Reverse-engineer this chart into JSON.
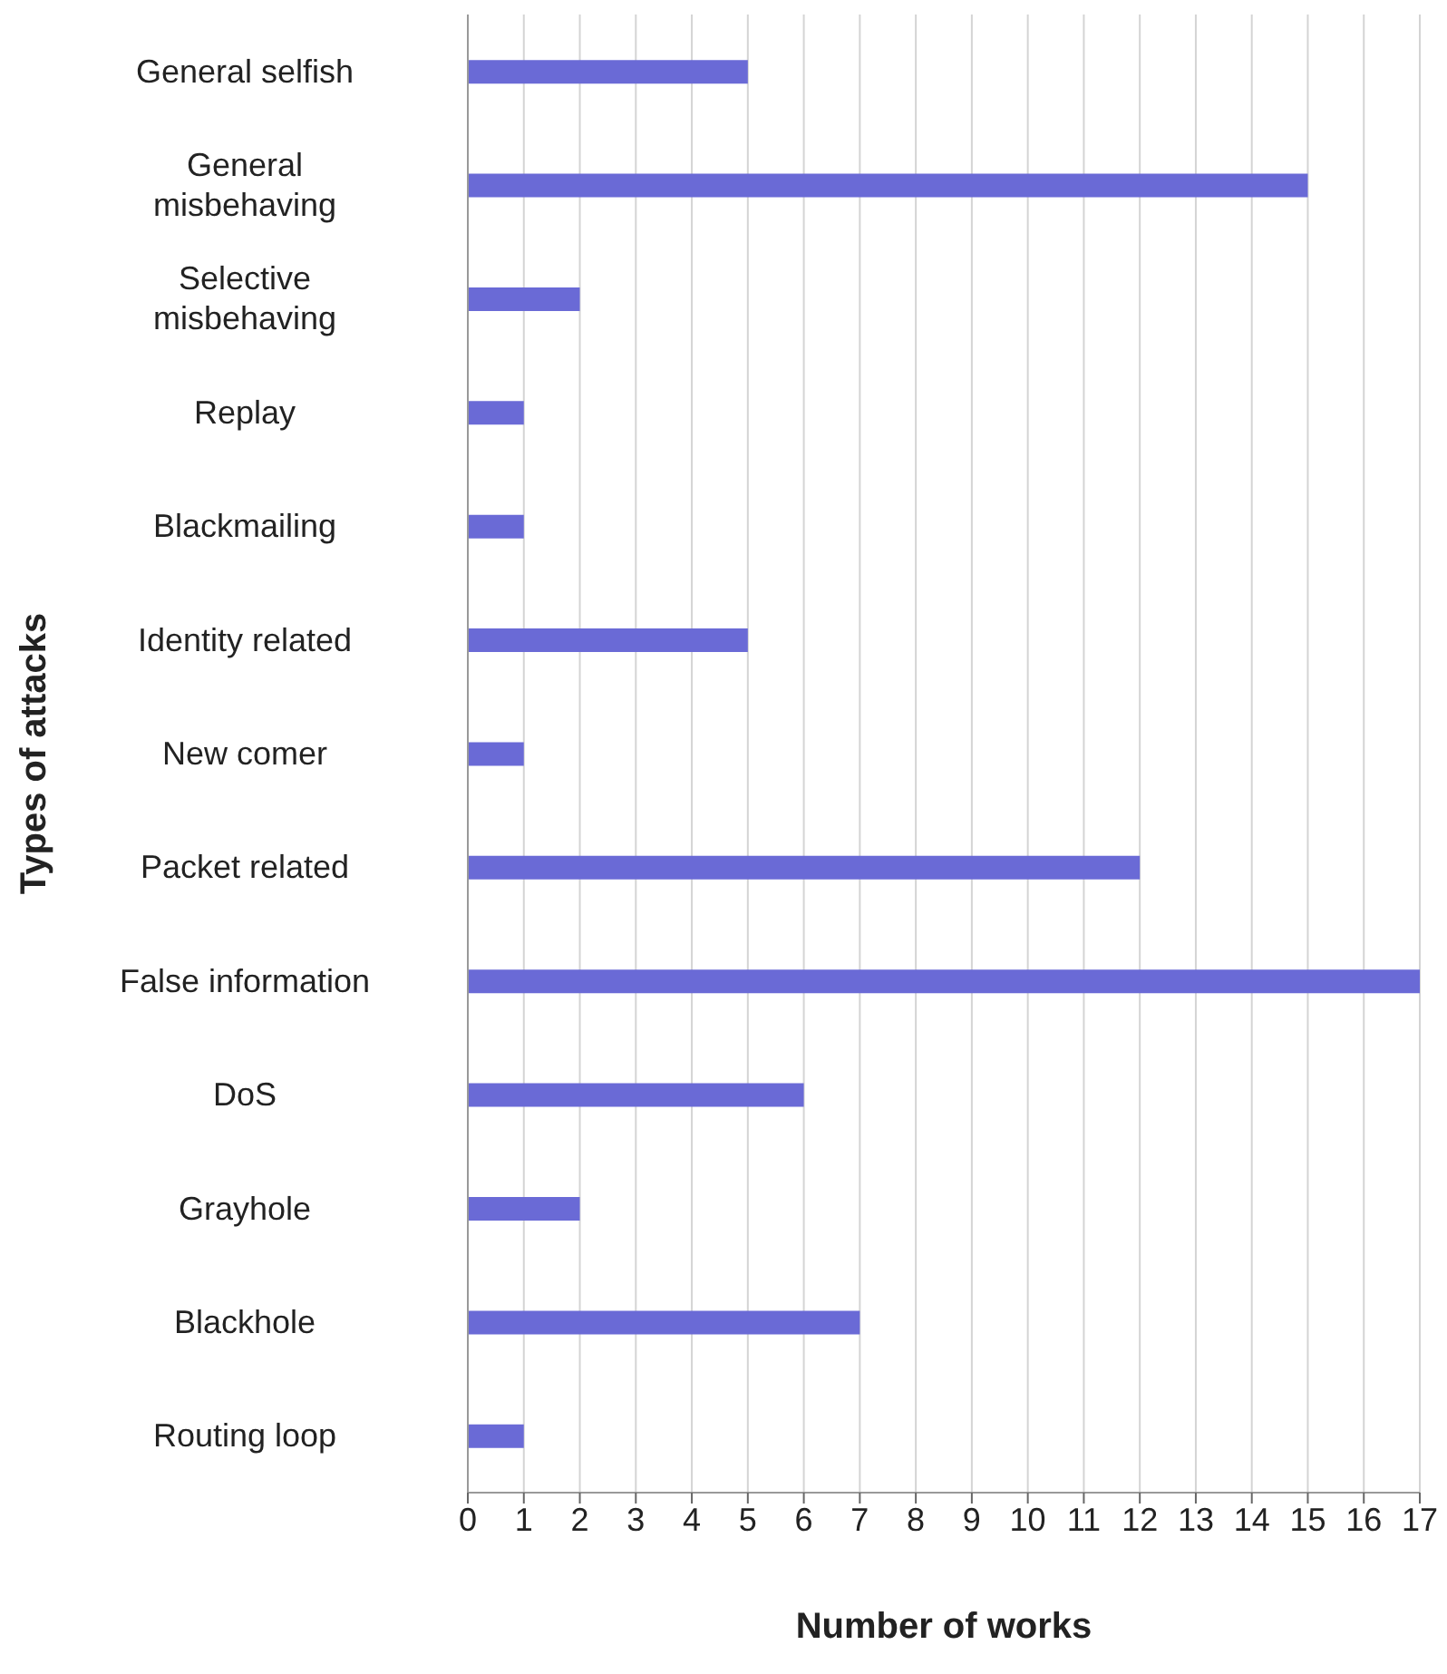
{
  "chart_data": {
    "type": "bar",
    "orientation": "horizontal",
    "xlabel": "Number of works",
    "ylabel": "Types of attacks",
    "categories": [
      "General selfish",
      "General misbehaving",
      "Selective misbehaving",
      "Replay",
      "Blackmailing",
      "Identity related",
      "New comer",
      "Packet related",
      "False information",
      "DoS",
      "Grayhole",
      "Blackhole",
      "Routing loop"
    ],
    "values": [
      5,
      15,
      2,
      1,
      1,
      5,
      1,
      12,
      17,
      6,
      2,
      7,
      1
    ],
    "color": "#6a6ad6",
    "xlim": [
      0,
      17
    ],
    "xticks": [
      0,
      1,
      2,
      3,
      4,
      5,
      6,
      7,
      8,
      9,
      10,
      11,
      12,
      13,
      14,
      15,
      16,
      17
    ],
    "grid": "x",
    "legend": false
  }
}
